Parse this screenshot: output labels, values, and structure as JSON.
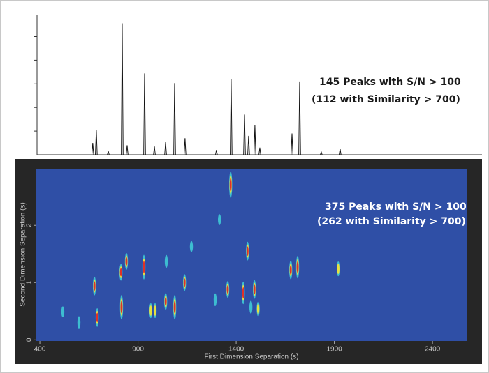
{
  "chart_data": [
    {
      "type": "spectrum",
      "annotations": [
        "145 Peaks with S/N > 100",
        "(112 with Similarity > 700)"
      ],
      "x": [
        670,
        688,
        749,
        820,
        845,
        934,
        984,
        1041,
        1087,
        1140,
        1300,
        1375,
        1443,
        1464,
        1496,
        1521,
        1685,
        1724,
        1834,
        1930
      ],
      "values": [
        0.5,
        1.06,
        0.15,
        5.56,
        0.4,
        3.44,
        0.35,
        0.53,
        3.03,
        0.7,
        0.2,
        3.2,
        1.7,
        0.8,
        1.24,
        0.3,
        0.9,
        3.1,
        0.12,
        0.26
      ],
      "color": "#111111",
      "xlim": [
        386,
        2653
      ],
      "ylim": [
        0,
        5.9
      ],
      "yticks": [
        1,
        2,
        3,
        4,
        5
      ]
    },
    {
      "type": "heatmap-spots",
      "x_label": "First Dimension Separation (s)",
      "y_label": "Second Dimension Separation (s)",
      "annotations": [
        "375 Peaks with S/N > 100",
        "(262 with Similarity > 700)"
      ],
      "x": [
        1372,
        678,
        692,
        816,
        813,
        841,
        930,
        965,
        987,
        1041,
        1044,
        1087,
        1137,
        1172,
        1293,
        1357,
        1436,
        1458,
        1493,
        1512,
        1475,
        1678,
        1713,
        1920,
        1315,
        517,
        599
      ],
      "y": [
        2.71,
        0.94,
        0.39,
        0.57,
        1.18,
        1.37,
        1.27,
        0.51,
        0.51,
        0.67,
        1.37,
        0.57,
        1.0,
        1.63,
        0.7,
        0.88,
        0.82,
        1.55,
        0.88,
        0.54,
        0.57,
        1.22,
        1.27,
        1.24,
        2.1,
        0.49,
        0.3
      ],
      "intensity": [
        1.0,
        0.6,
        0.6,
        0.9,
        0.5,
        0.5,
        0.9,
        0.4,
        0.4,
        0.5,
        0.3,
        0.9,
        0.5,
        0.2,
        0.3,
        0.5,
        0.8,
        0.6,
        0.6,
        0.4,
        0.3,
        0.6,
        0.8,
        0.4,
        0.2,
        0.2,
        0.3
      ],
      "background": "#2f4fa6",
      "xlim": [
        382,
        2574
      ],
      "ylim": [
        -0.02,
        2.99
      ],
      "xticks": [
        400,
        900,
        1400,
        1900,
        2400
      ],
      "yticks": [
        0,
        1,
        2
      ]
    }
  ]
}
